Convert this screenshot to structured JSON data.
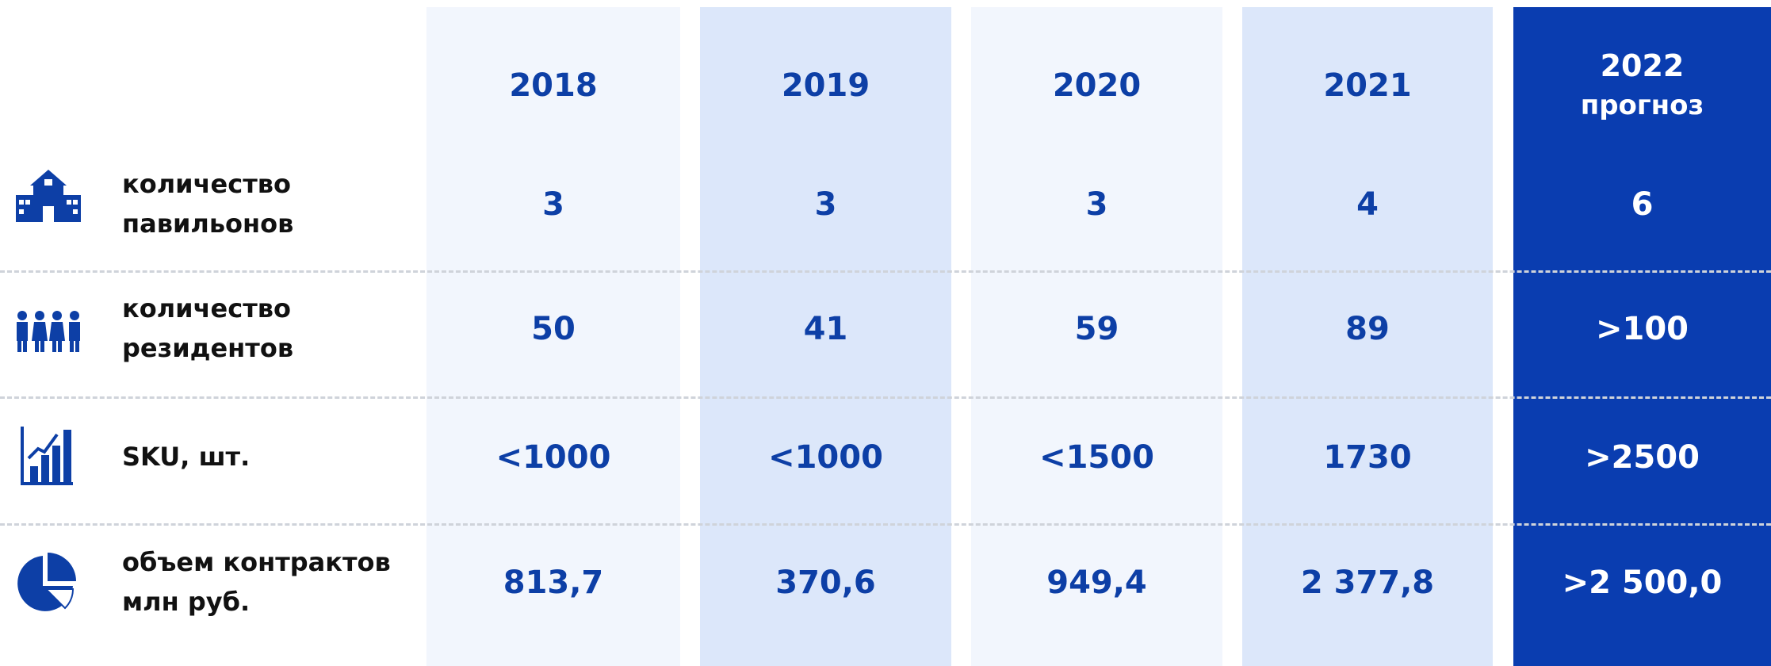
{
  "table": {
    "columns": [
      {
        "year": "2018"
      },
      {
        "year": "2019"
      },
      {
        "year": "2020"
      },
      {
        "year": "2021"
      },
      {
        "year": "2022",
        "note": "прогноз"
      }
    ],
    "rows": [
      {
        "label": "количество\nпавильонов",
        "values": [
          "3",
          "3",
          "3",
          "4",
          "6"
        ]
      },
      {
        "label": "количество\nрезидентов",
        "values": [
          "50",
          "41",
          "59",
          "89",
          ">100"
        ]
      },
      {
        "label": "SKU, шт.",
        "values": [
          "<1000",
          "<1000",
          "<1500",
          "1730",
          ">2500"
        ]
      },
      {
        "label": "объем контрактов\nмлн руб.",
        "values": [
          "813,7",
          "370,6",
          "949,4",
          "2 377,8",
          ">2 500,0"
        ]
      }
    ]
  }
}
